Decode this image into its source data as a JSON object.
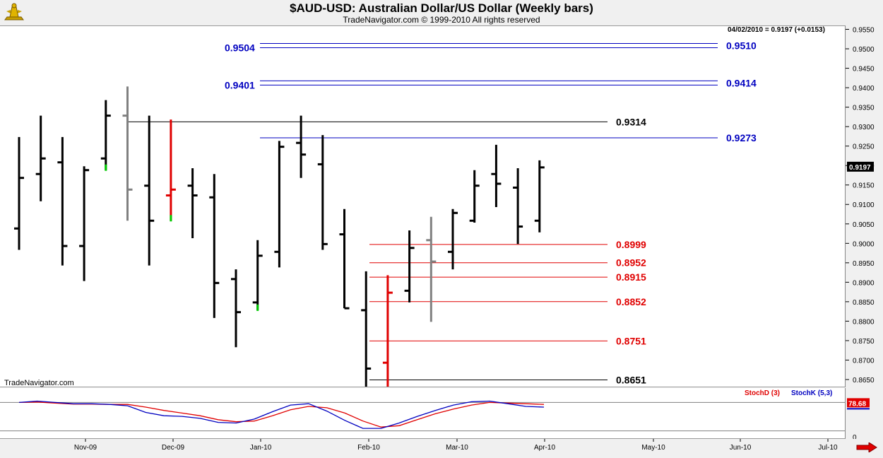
{
  "header": {
    "title": "$AUD-USD:  Australian Dollar/US Dollar  (Weekly bars)",
    "subtitle": "TradeNavigator.com © 1999-2010 All rights reserved",
    "last_price_text": "04/02/2010 = 0.9197 (+0.0153)",
    "watermark": "TradeNavigator.com"
  },
  "indicators": {
    "stochd_label": "StochD (3)",
    "stochk_label": "StochK (5,3)",
    "stoch_value": "78.68",
    "stoch_zero_label": "0"
  },
  "colors": {
    "up": "#000000",
    "down_gray": "#808080",
    "highlight_red": "#e00000",
    "highlight_green": "#00cc00",
    "blue_level": "#0000c0",
    "red_level": "#e00000",
    "stochd": "#e00000",
    "stochk": "#0000c0"
  },
  "chart_data": {
    "type": "ohlc",
    "x_tick_labels": [
      "Nov-09",
      "Dec-09",
      "Jan-10",
      "Feb-10",
      "Mar-10",
      "Apr-10",
      "May-10",
      "Jun-10",
      "Jul-10"
    ],
    "ylim": [
      0.863,
      0.956
    ],
    "y_tick_labels": [
      "0.9550",
      "0.9500",
      "0.9450",
      "0.9400",
      "0.9350",
      "0.9300",
      "0.9250",
      "0.9200",
      "0.9150",
      "0.9100",
      "0.9050",
      "0.9000",
      "0.8950",
      "0.8900",
      "0.8850",
      "0.8800",
      "0.8750",
      "0.8700",
      "0.8650"
    ],
    "current_price_label": "0.9197",
    "bars": [
      {
        "o": 0.904,
        "h": 0.9275,
        "l": 0.8985,
        "c": 0.917,
        "color": "#000000"
      },
      {
        "o": 0.918,
        "h": 0.933,
        "l": 0.911,
        "c": 0.922,
        "color": "#000000"
      },
      {
        "o": 0.921,
        "h": 0.9275,
        "l": 0.8945,
        "c": 0.8995,
        "color": "#000000"
      },
      {
        "o": 0.8995,
        "h": 0.92,
        "l": 0.8905,
        "c": 0.919,
        "color": "#000000"
      },
      {
        "o": 0.922,
        "h": 0.937,
        "l": 0.919,
        "c": 0.933,
        "color": "#000000",
        "low_tick": "#00cc00"
      },
      {
        "o": 0.933,
        "h": 0.9405,
        "l": 0.906,
        "c": 0.914,
        "color": "#808080"
      },
      {
        "o": 0.915,
        "h": 0.933,
        "l": 0.8945,
        "c": 0.906,
        "color": "#000000"
      },
      {
        "o": 0.9125,
        "h": 0.932,
        "l": 0.906,
        "c": 0.914,
        "color": "#e00000",
        "low_tick": "#00cc00"
      },
      {
        "o": 0.915,
        "h": 0.9195,
        "l": 0.9015,
        "c": 0.9125,
        "color": "#000000"
      },
      {
        "o": 0.912,
        "h": 0.918,
        "l": 0.881,
        "c": 0.89,
        "color": "#000000"
      },
      {
        "o": 0.891,
        "h": 0.8935,
        "l": 0.8735,
        "c": 0.8825,
        "color": "#000000"
      },
      {
        "o": 0.885,
        "h": 0.901,
        "l": 0.883,
        "c": 0.897,
        "color": "#000000",
        "low_tick": "#00cc00"
      },
      {
        "o": 0.898,
        "h": 0.9265,
        "l": 0.894,
        "c": 0.925,
        "color": "#000000"
      },
      {
        "o": 0.926,
        "h": 0.933,
        "l": 0.917,
        "c": 0.923,
        "color": "#000000"
      },
      {
        "o": 0.9205,
        "h": 0.928,
        "l": 0.8985,
        "c": 0.9,
        "color": "#000000"
      },
      {
        "o": 0.9025,
        "h": 0.909,
        "l": 0.8835,
        "c": 0.8835,
        "color": "#000000"
      },
      {
        "o": 0.883,
        "h": 0.893,
        "l": 0.863,
        "c": 0.868,
        "color": "#000000"
      },
      {
        "o": 0.8695,
        "h": 0.892,
        "l": 0.863,
        "c": 0.8875,
        "color": "#e00000"
      },
      {
        "o": 0.888,
        "h": 0.9035,
        "l": 0.885,
        "c": 0.899,
        "color": "#000000"
      },
      {
        "o": 0.901,
        "h": 0.907,
        "l": 0.88,
        "c": 0.8955,
        "color": "#808080"
      },
      {
        "o": 0.898,
        "h": 0.909,
        "l": 0.8935,
        "c": 0.908,
        "color": "#000000"
      },
      {
        "o": 0.906,
        "h": 0.919,
        "l": 0.9055,
        "c": 0.915,
        "color": "#000000"
      },
      {
        "o": 0.918,
        "h": 0.9255,
        "l": 0.9095,
        "c": 0.9155,
        "color": "#000000"
      },
      {
        "o": 0.9145,
        "h": 0.9195,
        "l": 0.9,
        "c": 0.9045,
        "color": "#000000"
      },
      {
        "o": 0.906,
        "h": 0.9215,
        "l": 0.903,
        "c": 0.9197,
        "color": "#000000"
      }
    ],
    "levels": [
      {
        "value": 0.951,
        "label": "0.9510",
        "left_label": "0.9504",
        "color": "#0000c0",
        "double": true
      },
      {
        "value": 0.9414,
        "label": "0.9414",
        "left_label": "0.9401",
        "color": "#0000c0",
        "double": true
      },
      {
        "value": 0.9273,
        "label": "0.9273",
        "color": "#0000c0"
      },
      {
        "value": 0.9314,
        "label": "0.9314",
        "color": "#000000"
      },
      {
        "value": 0.8999,
        "label": "0.8999",
        "color": "#e00000"
      },
      {
        "value": 0.8952,
        "label": "0.8952",
        "color": "#e00000"
      },
      {
        "value": 0.8915,
        "label": "0.8915",
        "color": "#e00000"
      },
      {
        "value": 0.8852,
        "label": "0.8852",
        "color": "#e00000"
      },
      {
        "value": 0.8751,
        "label": "0.8751",
        "color": "#e00000"
      },
      {
        "value": 0.8651,
        "label": "0.8651",
        "color": "#000000"
      }
    ],
    "stochastic": {
      "ylim": [
        0,
        100
      ],
      "k": [
        80,
        84,
        80,
        76,
        76,
        74,
        70,
        50,
        40,
        38,
        32,
        20,
        18,
        30,
        52,
        72,
        76,
        54,
        26,
        2,
        2,
        18,
        38,
        56,
        72,
        82,
        84,
        76,
        68,
        66
      ],
      "d": [
        80,
        81,
        78,
        75,
        75,
        74,
        74,
        66,
        56,
        48,
        40,
        28,
        22,
        24,
        40,
        58,
        68,
        64,
        48,
        24,
        6,
        10,
        28,
        46,
        60,
        72,
        80,
        78,
        76,
        74
      ]
    }
  }
}
